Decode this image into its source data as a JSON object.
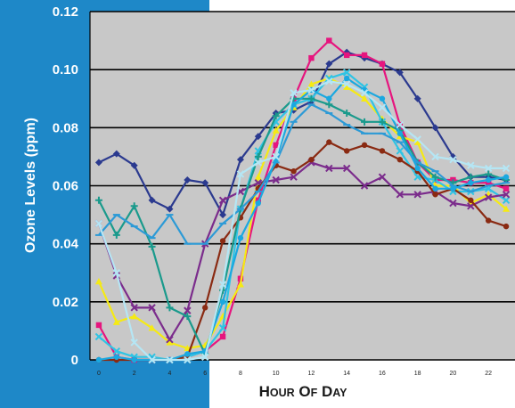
{
  "chart_data": {
    "type": "line",
    "xlabel": "Hour of Day",
    "ylabel": "Ozone Levels (ppm)",
    "xlim": [
      -0.5,
      23.5
    ],
    "ylim": [
      0,
      0.12
    ],
    "x_ticks": [
      0,
      2,
      4,
      6,
      8,
      10,
      12,
      14,
      16,
      18,
      20,
      22
    ],
    "y_ticks": [
      0,
      0.02,
      0.04,
      0.06,
      0.08,
      0.1,
      0.12
    ],
    "y_tick_labels": [
      "0",
      "0.02",
      "0.04",
      "0.06",
      "0.08",
      "0.10",
      "0.12"
    ],
    "grid": "horizontal",
    "plot_background": "#c8c8c8",
    "series": [
      {
        "color": "#2b3a8f",
        "marker": "diamond",
        "values": [
          0.068,
          0.071,
          0.067,
          0.055,
          0.052,
          0.062,
          0.061,
          0.05,
          0.069,
          0.077,
          0.085,
          0.086,
          0.089,
          0.102,
          0.106,
          0.104,
          0.102,
          0.099,
          0.09,
          0.08,
          0.07,
          0.063,
          0.063,
          0.062
        ]
      },
      {
        "color": "#e6157e",
        "marker": "square",
        "values": [
          0.012,
          0.001,
          0.0,
          0.0,
          0.0,
          0.001,
          0.003,
          0.008,
          0.028,
          0.055,
          0.074,
          0.09,
          0.104,
          0.11,
          0.105,
          0.105,
          0.102,
          0.081,
          0.068,
          0.062,
          0.062,
          0.061,
          0.061,
          0.059
        ]
      },
      {
        "color": "#f5ea14",
        "marker": "triangle",
        "values": [
          0.027,
          0.013,
          0.015,
          0.011,
          0.006,
          0.004,
          0.005,
          0.015,
          0.026,
          0.063,
          0.079,
          0.087,
          0.095,
          0.097,
          0.094,
          0.09,
          0.083,
          0.077,
          0.075,
          0.06,
          0.06,
          0.054,
          0.057,
          0.052
        ]
      },
      {
        "color": "#2fc4e4",
        "marker": "x",
        "values": [
          0.008,
          0.003,
          0.001,
          0.001,
          0.0,
          0.001,
          0.003,
          0.011,
          0.052,
          0.072,
          0.082,
          0.088,
          0.09,
          0.097,
          0.099,
          0.094,
          0.082,
          0.072,
          0.063,
          0.062,
          0.058,
          0.058,
          0.059,
          0.055
        ]
      },
      {
        "color": "#7b2c8c",
        "marker": "x",
        "values": [
          0.047,
          0.029,
          0.018,
          0.018,
          0.007,
          0.017,
          0.04,
          0.055,
          0.058,
          0.061,
          0.062,
          0.063,
          0.068,
          0.066,
          0.066,
          0.06,
          0.063,
          0.057,
          0.057,
          0.058,
          0.054,
          0.053,
          0.056,
          0.057
        ]
      },
      {
        "color": "#8a2a12",
        "marker": "circle",
        "values": [
          0.0,
          0.0,
          0.0,
          0.0,
          0.0,
          0.001,
          0.018,
          0.041,
          0.049,
          0.059,
          0.067,
          0.065,
          0.069,
          0.075,
          0.072,
          0.074,
          0.072,
          0.069,
          0.065,
          0.057,
          0.059,
          0.055,
          0.048,
          0.046
        ]
      },
      {
        "color": "#1a9a8c",
        "marker": "plus",
        "values": [
          0.055,
          0.043,
          0.053,
          0.039,
          0.018,
          0.015,
          0.002,
          0.024,
          0.052,
          0.07,
          0.084,
          0.09,
          0.09,
          0.088,
          0.085,
          0.082,
          0.082,
          0.079,
          0.068,
          0.063,
          0.061,
          0.063,
          0.064,
          0.062
        ]
      },
      {
        "color": "#2c9ad6",
        "marker": "dash",
        "values": [
          0.043,
          0.05,
          0.046,
          0.042,
          0.05,
          0.04,
          0.04,
          0.047,
          0.052,
          0.058,
          0.068,
          0.082,
          0.088,
          0.085,
          0.081,
          0.078,
          0.078,
          0.075,
          0.068,
          0.065,
          0.06,
          0.058,
          0.06,
          0.061
        ]
      },
      {
        "color": "#1aa8e0",
        "marker": "circle",
        "values": [
          0.0,
          0.001,
          0.0,
          0.0,
          0.0,
          0.002,
          0.003,
          0.02,
          0.042,
          0.054,
          0.069,
          0.088,
          0.093,
          0.09,
          0.097,
          0.093,
          0.09,
          0.078,
          0.066,
          0.059,
          0.059,
          0.061,
          0.062,
          0.063
        ]
      },
      {
        "color": "#b5e6f4",
        "marker": "x",
        "values": [
          0.047,
          0.03,
          0.006,
          0.0,
          0.0,
          0.0,
          0.001,
          0.026,
          0.064,
          0.068,
          0.07,
          0.092,
          0.093,
          0.096,
          0.095,
          0.092,
          0.087,
          0.081,
          0.076,
          0.07,
          0.069,
          0.067,
          0.066,
          0.066
        ]
      }
    ]
  }
}
